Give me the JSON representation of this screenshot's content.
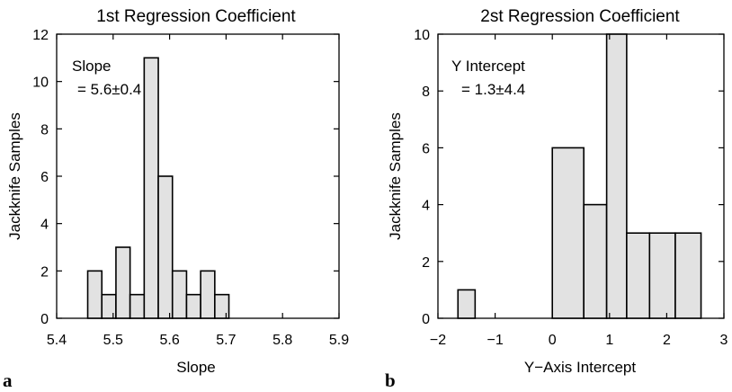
{
  "chart_data": [
    {
      "type": "bar",
      "panel_label": "a",
      "title": "1st Regression Coefficient",
      "xlabel": "Slope",
      "ylabel": "Jackknife Samples",
      "xlim": [
        5.4,
        5.9
      ],
      "ylim": [
        0,
        12
      ],
      "xticks": [
        "5.4",
        "5.5",
        "5.6",
        "5.7",
        "5.8",
        "5.9"
      ],
      "yticks": [
        "0",
        "2",
        "4",
        "6",
        "8",
        "10",
        "12"
      ],
      "annotation": [
        "Slope",
        "= 5.6±0.4"
      ],
      "bins": [
        {
          "x0": 5.455,
          "x1": 5.48,
          "count": 2
        },
        {
          "x0": 5.48,
          "x1": 5.505,
          "count": 1
        },
        {
          "x0": 5.505,
          "x1": 5.53,
          "count": 3
        },
        {
          "x0": 5.53,
          "x1": 5.555,
          "count": 1
        },
        {
          "x0": 5.555,
          "x1": 5.58,
          "count": 11
        },
        {
          "x0": 5.58,
          "x1": 5.605,
          "count": 6
        },
        {
          "x0": 5.605,
          "x1": 5.63,
          "count": 2
        },
        {
          "x0": 5.63,
          "x1": 5.655,
          "count": 1
        },
        {
          "x0": 5.655,
          "x1": 5.68,
          "count": 2
        },
        {
          "x0": 5.68,
          "x1": 5.705,
          "count": 1
        }
      ]
    },
    {
      "type": "bar",
      "panel_label": "b",
      "title": "2st Regression Coefficient",
      "xlabel": "Y−Axis Intercept",
      "ylabel": "Jackknife Samples",
      "xlim": [
        -2,
        3
      ],
      "ylim": [
        0,
        10
      ],
      "xticks": [
        "−2",
        "−1",
        "0",
        "1",
        "2",
        "3"
      ],
      "yticks": [
        "0",
        "2",
        "4",
        "6",
        "8",
        "10"
      ],
      "annotation": [
        "Y Intercept",
        "= 1.3±4.4"
      ],
      "bins": [
        {
          "x0": -1.65,
          "x1": -1.35,
          "count": 1
        },
        {
          "x0": 0.0,
          "x1": 0.55,
          "count": 6
        },
        {
          "x0": 0.55,
          "x1": 0.95,
          "count": 4
        },
        {
          "x0": 0.95,
          "x1": 1.3,
          "count": 10
        },
        {
          "x0": 1.3,
          "x1": 1.7,
          "count": 3
        },
        {
          "x0": 1.7,
          "x1": 2.15,
          "count": 3
        },
        {
          "x0": 2.15,
          "x1": 2.6,
          "count": 3
        }
      ]
    }
  ]
}
